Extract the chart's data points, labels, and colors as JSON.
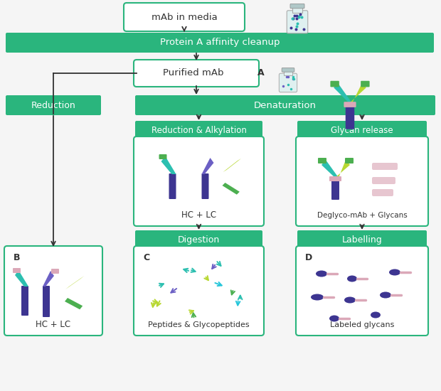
{
  "bg_color": "#f5f5f5",
  "green_fill": "#2ab57d",
  "green_border": "#2ab57d",
  "text_white": "#ffffff",
  "text_dark": "#333333",
  "arrow_color": "#333333",
  "purple_dark": "#3d3591",
  "purple_mid": "#6b5fc4",
  "teal": "#2cbfb0",
  "lime": "#b8d832",
  "green_light": "#4caf50",
  "pink_light": "#dba8b8",
  "pink_light2": "#c8a0b8",
  "title": "mAb in media",
  "protein_a_label": "Protein A affinity cleanup",
  "purified_mab_label": "Purified mAb",
  "reduction_label": "Reduction",
  "denaturation_label": "Denaturation",
  "red_alkyl_label": "Reduction & Alkylation",
  "glycan_release_label": "Glycan release",
  "digestion_label": "Digestion",
  "labelling_label": "Labelling",
  "hc_lc_label1": "HC + LC",
  "hc_lc_label2": "HC + LC",
  "deglyco_label": "Deglyco-mAb + Glycans",
  "peptides_label": "Peptides & Glycopeptides",
  "labeled_glycans_label": "Labeled glycans",
  "A_label": "A",
  "B_label": "B",
  "C_label": "C",
  "D_label": "D",
  "figw": 6.2,
  "figh": 5.5,
  "dpi": 100
}
